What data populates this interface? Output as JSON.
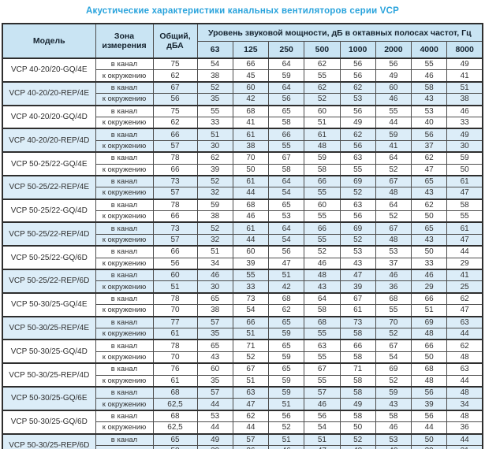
{
  "title": "Акустические характеристики канальных вентиляторов  серии VCP",
  "table": {
    "headers": {
      "model": "Модель",
      "zone": "Зона измерения",
      "overall": "Общий, дБА",
      "power_group": "Уровень звуковой мощности, дБ в октавных полосах частот, Гц",
      "frequencies": [
        "63",
        "125",
        "250",
        "500",
        "1000",
        "2000",
        "4000",
        "8000"
      ]
    },
    "models": [
      {
        "name": "VCP 40-20/20-GQ/4E",
        "highlighted": false,
        "rows": [
          {
            "zone": "в канал",
            "values": [
              "75",
              "54",
              "66",
              "64",
              "62",
              "56",
              "56",
              "55",
              "49"
            ]
          },
          {
            "zone": "к окружению",
            "values": [
              "62",
              "38",
              "45",
              "59",
              "55",
              "56",
              "49",
              "46",
              "41"
            ]
          }
        ]
      },
      {
        "name": "VCP 40-20/20-REP/4E",
        "highlighted": true,
        "rows": [
          {
            "zone": "в канал",
            "values": [
              "67",
              "52",
              "60",
              "64",
              "62",
              "62",
              "60",
              "58",
              "51"
            ]
          },
          {
            "zone": "к окружению",
            "values": [
              "56",
              "35",
              "42",
              "56",
              "52",
              "53",
              "46",
              "43",
              "38"
            ]
          }
        ]
      },
      {
        "name": "VCP 40-20/20-GQ/4D",
        "highlighted": false,
        "rows": [
          {
            "zone": "в канал",
            "values": [
              "75",
              "55",
              "68",
              "65",
              "60",
              "56",
              "55",
              "53",
              "46"
            ]
          },
          {
            "zone": "к окружению",
            "values": [
              "62",
              "33",
              "41",
              "58",
              "51",
              "49",
              "44",
              "40",
              "33"
            ]
          }
        ]
      },
      {
        "name": "VCP 40-20/20-REP/4D",
        "highlighted": true,
        "rows": [
          {
            "zone": "в канал",
            "values": [
              "66",
              "51",
              "61",
              "66",
              "61",
              "62",
              "59",
              "56",
              "49"
            ]
          },
          {
            "zone": "к окружению",
            "values": [
              "57",
              "30",
              "38",
              "55",
              "48",
              "56",
              "41",
              "37",
              "30"
            ]
          }
        ]
      },
      {
        "name": "VCP 50-25/22-GQ/4E",
        "highlighted": false,
        "rows": [
          {
            "zone": "в канал",
            "values": [
              "78",
              "62",
              "70",
              "67",
              "59",
              "63",
              "64",
              "62",
              "59"
            ]
          },
          {
            "zone": "к окружению",
            "values": [
              "66",
              "39",
              "50",
              "58",
              "58",
              "55",
              "52",
              "47",
              "50"
            ]
          }
        ]
      },
      {
        "name": "VCP 50-25/22-REP/4E",
        "highlighted": true,
        "rows": [
          {
            "zone": "в канал",
            "values": [
              "73",
              "52",
              "61",
              "64",
              "66",
              "69",
              "67",
              "65",
              "61"
            ]
          },
          {
            "zone": "к окружению",
            "values": [
              "57",
              "32",
              "44",
              "54",
              "55",
              "52",
              "48",
              "43",
              "47"
            ]
          }
        ]
      },
      {
        "name": "VCP 50-25/22-GQ/4D",
        "highlighted": false,
        "rows": [
          {
            "zone": "в канал",
            "values": [
              "78",
              "59",
              "68",
              "65",
              "60",
              "63",
              "64",
              "62",
              "58"
            ]
          },
          {
            "zone": "к окружению",
            "values": [
              "66",
              "38",
              "46",
              "53",
              "55",
              "56",
              "52",
              "50",
              "55"
            ]
          }
        ]
      },
      {
        "name": "VCP 50-25/22-REP/4D",
        "highlighted": true,
        "rows": [
          {
            "zone": "в канал",
            "values": [
              "73",
              "52",
              "61",
              "64",
              "66",
              "69",
              "67",
              "65",
              "61"
            ]
          },
          {
            "zone": "к окружению",
            "values": [
              "57",
              "32",
              "44",
              "54",
              "55",
              "52",
              "48",
              "43",
              "47"
            ]
          }
        ]
      },
      {
        "name": "VCP 50-25/22-GQ/6D",
        "highlighted": false,
        "rows": [
          {
            "zone": "в канал",
            "values": [
              "66",
              "51",
              "60",
              "56",
              "52",
              "53",
              "53",
              "50",
              "44"
            ]
          },
          {
            "zone": "к окружению",
            "values": [
              "56",
              "34",
              "39",
              "47",
              "46",
              "43",
              "37",
              "33",
              "29"
            ]
          }
        ]
      },
      {
        "name": "VCP 50-25/22-REP/6D",
        "highlighted": true,
        "rows": [
          {
            "zone": "в канал",
            "values": [
              "60",
              "46",
              "55",
              "51",
              "48",
              "47",
              "46",
              "46",
              "41"
            ]
          },
          {
            "zone": "к окружению",
            "values": [
              "51",
              "30",
              "33",
              "42",
              "43",
              "39",
              "36",
              "29",
              "25"
            ]
          }
        ]
      },
      {
        "name": "VCP 50-30/25-GQ/4E",
        "highlighted": false,
        "rows": [
          {
            "zone": "в канал",
            "values": [
              "78",
              "65",
              "73",
              "68",
              "64",
              "67",
              "68",
              "66",
              "62"
            ]
          },
          {
            "zone": "к окружению",
            "values": [
              "70",
              "38",
              "54",
              "62",
              "58",
              "61",
              "55",
              "51",
              "47"
            ]
          }
        ]
      },
      {
        "name": "VCP 50-30/25-REP/4E",
        "highlighted": true,
        "rows": [
          {
            "zone": "в канал",
            "values": [
              "77",
              "57",
              "66",
              "65",
              "68",
              "73",
              "70",
              "69",
              "63"
            ]
          },
          {
            "zone": "к окружению",
            "values": [
              "61",
              "35",
              "51",
              "59",
              "55",
              "58",
              "52",
              "48",
              "44"
            ]
          }
        ]
      },
      {
        "name": "VCP 50-30/25-GQ/4D",
        "highlighted": false,
        "rows": [
          {
            "zone": "в канал",
            "values": [
              "78",
              "65",
              "71",
              "65",
              "63",
              "66",
              "67",
              "66",
              "62"
            ]
          },
          {
            "zone": "к окружению",
            "values": [
              "70",
              "43",
              "52",
              "59",
              "55",
              "58",
              "54",
              "50",
              "48"
            ]
          }
        ]
      },
      {
        "name": "VCP 50-30/25-REP/4D",
        "highlighted": false,
        "rows": [
          {
            "zone": "в канал",
            "values": [
              "76",
              "60",
              "67",
              "65",
              "67",
              "71",
              "69",
              "68",
              "63"
            ]
          },
          {
            "zone": "к окружению",
            "values": [
              "61",
              "35",
              "51",
              "59",
              "55",
              "58",
              "52",
              "48",
              "44"
            ]
          }
        ]
      },
      {
        "name": "VCP 50-30/25-GQ/6E",
        "highlighted": true,
        "rows": [
          {
            "zone": "в канал",
            "values": [
              "68",
              "57",
              "63",
              "59",
              "57",
              "58",
              "59",
              "56",
              "48"
            ]
          },
          {
            "zone": "к окружению",
            "values": [
              "62,5",
              "44",
              "47",
              "51",
              "46",
              "49",
              "43",
              "39",
              "34"
            ]
          }
        ]
      },
      {
        "name": "VCP 50-30/25-GQ/6D",
        "highlighted": false,
        "rows": [
          {
            "zone": "в канал",
            "values": [
              "68",
              "53",
              "62",
              "56",
              "56",
              "58",
              "58",
              "56",
              "48"
            ]
          },
          {
            "zone": "к окружению",
            "values": [
              "62,5",
              "44",
              "44",
              "52",
              "54",
              "50",
              "46",
              "44",
              "36"
            ]
          }
        ]
      },
      {
        "name": "VCP 50-30/25-REP/6D",
        "highlighted": true,
        "rows": [
          {
            "zone": "в канал",
            "values": [
              "65",
              "49",
              "57",
              "51",
              "51",
              "52",
              "53",
              "50",
              "44"
            ]
          },
          {
            "zone": "к окружению",
            "values": [
              "58",
              "39",
              "36",
              "46",
              "47",
              "48",
              "40",
              "39",
              "31"
            ]
          }
        ]
      }
    ]
  },
  "colors": {
    "title": "#29a3dc",
    "header_bg": "#c9e4f3",
    "highlight_row_bg": "#dcedf8",
    "border": "#4d4d4d"
  }
}
